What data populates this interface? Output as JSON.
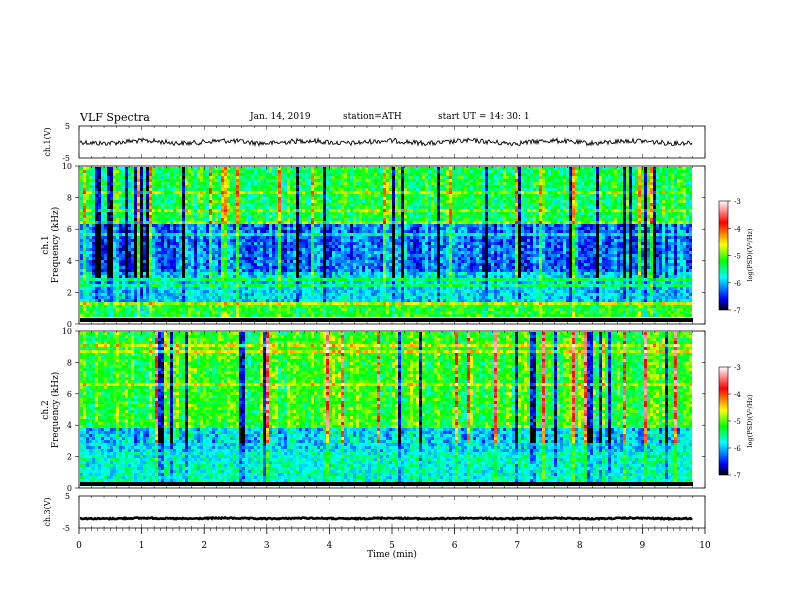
{
  "header": {
    "title": "VLF  Spectra",
    "date": "Jan. 14, 2019",
    "station": "station=ATH",
    "start": "start  UT  =   14: 30: 1"
  },
  "chart_data": [
    {
      "type": "line",
      "panel": "ch1-waveform",
      "ylabel": "ch.1(V)",
      "yticks": [
        "5",
        "-5"
      ],
      "ylim": [
        -5,
        5
      ],
      "trace_level": 0,
      "trace_color": "#000000"
    },
    {
      "type": "heatmap",
      "panel": "ch1-spectrogram",
      "ylabel": "ch.1\nFrequency (kHz)",
      "ylabel_lines": [
        "ch.1",
        "Frequency (kHz)"
      ],
      "yticks": [
        "0",
        "2",
        "4",
        "6",
        "8",
        "10"
      ],
      "ylim": [
        0,
        10
      ],
      "colorbar": {
        "label": "log(PSD)(V²/Hz)",
        "ticks": [
          "-3",
          "-4",
          "-5",
          "-6",
          "-7"
        ],
        "range": [
          -7,
          -3
        ]
      }
    },
    {
      "type": "heatmap",
      "panel": "ch2-spectrogram",
      "ylabel_lines": [
        "ch.2",
        "Frequency (kHz)"
      ],
      "yticks": [
        "0",
        "2",
        "4",
        "6",
        "8",
        "10"
      ],
      "ylim": [
        0,
        10
      ],
      "colorbar": {
        "label": "log(PSD)(V²/Hz)",
        "ticks": [
          "-3",
          "-4",
          "-5",
          "-6",
          "-7"
        ],
        "range": [
          -7,
          -3
        ]
      }
    },
    {
      "type": "line",
      "panel": "ch3-waveform",
      "ylabel": "ch.3(V)",
      "yticks": [
        "5",
        "-5"
      ],
      "ylim": [
        -5,
        5
      ],
      "trace_level": -2
    }
  ],
  "xaxis": {
    "label": "Time  (min)",
    "ticks": [
      "0",
      "1",
      "2",
      "3",
      "4",
      "5",
      "6",
      "7",
      "8",
      "9",
      "10"
    ],
    "xlim": [
      0,
      10
    ]
  },
  "colors": {
    "spectrogram_scale": [
      "#000000",
      "#0000ff",
      "#00ffff",
      "#00ff00",
      "#ffff00",
      "#ff0000",
      "#ffffff"
    ]
  }
}
